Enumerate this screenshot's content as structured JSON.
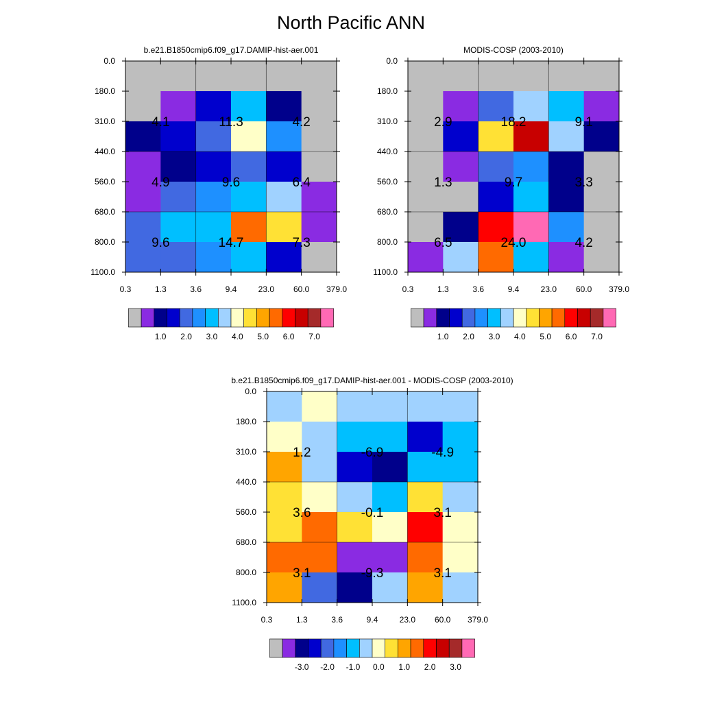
{
  "title": "North Pacific ANN",
  "chart_data": [
    {
      "type": "heatmap",
      "title": "b.e21.B1850cmip6.f09_g17.DAMIP-hist-aer.001",
      "x_ticks": [
        "0.3",
        "1.3",
        "3.6",
        "9.4",
        "23.0",
        "60.0",
        "379.0"
      ],
      "y_ticks": [
        "0.0",
        "180.0",
        "310.0",
        "440.0",
        "560.0",
        "680.0",
        "800.0",
        "1100.0"
      ],
      "cell_colors": [
        [
          "#bebebe",
          "#bebebe",
          "#bebebe",
          "#bebebe",
          "#bebebe",
          "#bebebe"
        ],
        [
          "#bebebe",
          "#8a2be2",
          "#0000cd",
          "#00bfff",
          "#00008b",
          "#bebebe"
        ],
        [
          "#00008b",
          "#0000cd",
          "#4169e1",
          "#ffffc8",
          "#1e90ff",
          "#bebebe"
        ],
        [
          "#8a2be2",
          "#00008b",
          "#0000cd",
          "#4169e1",
          "#0000cd",
          "#bebebe"
        ],
        [
          "#8a2be2",
          "#4169e1",
          "#1e90ff",
          "#00bfff",
          "#a0d2ff",
          "#8a2be2"
        ],
        [
          "#4169e1",
          "#00bfff",
          "#00bfff",
          "#ff6a00",
          "#ffe135",
          "#8a2be2"
        ],
        [
          "#4169e1",
          "#4169e1",
          "#1e90ff",
          "#00bfff",
          "#0000cd",
          "#bebebe"
        ]
      ],
      "annotations": [
        {
          "row": 1,
          "col": 0,
          "text": "4.1"
        },
        {
          "row": 1,
          "col": 1,
          "text": "11.3"
        },
        {
          "row": 1,
          "col": 2,
          "text": "4.2"
        },
        {
          "row": 2,
          "col": 0,
          "text": "4.9"
        },
        {
          "row": 2,
          "col": 1,
          "text": "9.6"
        },
        {
          "row": 2,
          "col": 2,
          "text": "6.4"
        },
        {
          "row": 3,
          "col": 0,
          "text": "9.6"
        },
        {
          "row": 3,
          "col": 1,
          "text": "14.7"
        },
        {
          "row": 3,
          "col": 2,
          "text": "7.3"
        }
      ],
      "colorbar": {
        "colors": [
          "#bebebe",
          "#8a2be2",
          "#00008b",
          "#0000cd",
          "#4169e1",
          "#1e90ff",
          "#00bfff",
          "#a0d2ff",
          "#ffffc8",
          "#ffe135",
          "#ffa500",
          "#ff6a00",
          "#ff0000",
          "#c80000",
          "#a52a2a",
          "#ff69b4"
        ],
        "labels": [
          "1.0",
          "2.0",
          "3.0",
          "4.0",
          "5.0",
          "6.0",
          "7.0"
        ],
        "label_box_index": [
          1,
          3,
          5,
          7,
          9,
          11,
          13
        ]
      }
    },
    {
      "type": "heatmap",
      "title": "MODIS-COSP (2003-2010)",
      "x_ticks": [
        "0.3",
        "1.3",
        "3.6",
        "9.4",
        "23.0",
        "60.0",
        "379.0"
      ],
      "y_ticks": [
        "0.0",
        "180.0",
        "310.0",
        "440.0",
        "560.0",
        "680.0",
        "800.0",
        "1100.0"
      ],
      "cell_colors": [
        [
          "#bebebe",
          "#bebebe",
          "#bebebe",
          "#bebebe",
          "#bebebe",
          "#bebebe"
        ],
        [
          "#bebebe",
          "#8a2be2",
          "#4169e1",
          "#a0d2ff",
          "#00bfff",
          "#8a2be2"
        ],
        [
          "#bebebe",
          "#0000cd",
          "#ffe135",
          "#c80000",
          "#a0d2ff",
          "#00008b"
        ],
        [
          "#bebebe",
          "#8a2be2",
          "#4169e1",
          "#1e90ff",
          "#00008b",
          "#bebebe"
        ],
        [
          "#bebebe",
          "#bebebe",
          "#0000cd",
          "#00bfff",
          "#00008b",
          "#bebebe"
        ],
        [
          "#bebebe",
          "#00008b",
          "#ff0000",
          "#ff69b4",
          "#1e90ff",
          "#bebebe"
        ],
        [
          "#8a2be2",
          "#a0d2ff",
          "#ff6a00",
          "#00bfff",
          "#8a2be2",
          "#bebebe"
        ]
      ],
      "annotations": [
        {
          "row": 1,
          "col": 0,
          "text": "2.9"
        },
        {
          "row": 1,
          "col": 1,
          "text": "18.2"
        },
        {
          "row": 1,
          "col": 2,
          "text": "9.1"
        },
        {
          "row": 2,
          "col": 0,
          "text": "1.3"
        },
        {
          "row": 2,
          "col": 1,
          "text": "9.7"
        },
        {
          "row": 2,
          "col": 2,
          "text": "3.3"
        },
        {
          "row": 3,
          "col": 0,
          "text": "6.5"
        },
        {
          "row": 3,
          "col": 1,
          "text": "24.0"
        },
        {
          "row": 3,
          "col": 2,
          "text": "4.2"
        }
      ],
      "colorbar": {
        "colors": [
          "#bebebe",
          "#8a2be2",
          "#00008b",
          "#0000cd",
          "#4169e1",
          "#1e90ff",
          "#00bfff",
          "#a0d2ff",
          "#ffffc8",
          "#ffe135",
          "#ffa500",
          "#ff6a00",
          "#ff0000",
          "#c80000",
          "#a52a2a",
          "#ff69b4"
        ],
        "labels": [
          "1.0",
          "2.0",
          "3.0",
          "4.0",
          "5.0",
          "6.0",
          "7.0"
        ],
        "label_box_index": [
          1,
          3,
          5,
          7,
          9,
          11,
          13
        ]
      }
    },
    {
      "type": "heatmap",
      "title": "b.e21.B1850cmip6.f09_g17.DAMIP-hist-aer.001 - MODIS-COSP (2003-2010)",
      "x_ticks": [
        "0.3",
        "1.3",
        "3.6",
        "9.4",
        "23.0",
        "60.0",
        "379.0"
      ],
      "y_ticks": [
        "0.0",
        "180.0",
        "310.0",
        "440.0",
        "560.0",
        "680.0",
        "800.0",
        "1100.0"
      ],
      "cell_colors": [
        [
          "#a0d2ff",
          "#ffffc8",
          "#a0d2ff",
          "#a0d2ff",
          "#a0d2ff",
          "#a0d2ff"
        ],
        [
          "#ffffc8",
          "#a0d2ff",
          "#00bfff",
          "#00bfff",
          "#0000cd",
          "#00bfff"
        ],
        [
          "#ffa500",
          "#a0d2ff",
          "#0000cd",
          "#00008b",
          "#00bfff",
          "#00bfff"
        ],
        [
          "#ffe135",
          "#ffffc8",
          "#a0d2ff",
          "#00bfff",
          "#ffe135",
          "#a0d2ff"
        ],
        [
          "#ffe135",
          "#ff6a00",
          "#ffe135",
          "#ffffc8",
          "#ff0000",
          "#ffffc8"
        ],
        [
          "#ff6a00",
          "#ff6a00",
          "#8a2be2",
          "#8a2be2",
          "#ff6a00",
          "#ffffc8"
        ],
        [
          "#ffa500",
          "#4169e1",
          "#00008b",
          "#a0d2ff",
          "#ffa500",
          "#a0d2ff"
        ]
      ],
      "annotations": [
        {
          "row": 1,
          "col": 0,
          "text": "1.2"
        },
        {
          "row": 1,
          "col": 1,
          "text": "-6.9"
        },
        {
          "row": 1,
          "col": 2,
          "text": "-4.9"
        },
        {
          "row": 2,
          "col": 0,
          "text": "3.6"
        },
        {
          "row": 2,
          "col": 1,
          "text": "-0.1"
        },
        {
          "row": 2,
          "col": 2,
          "text": "3.1"
        },
        {
          "row": 3,
          "col": 0,
          "text": "3.1"
        },
        {
          "row": 3,
          "col": 1,
          "text": "-9.3"
        },
        {
          "row": 3,
          "col": 2,
          "text": "3.1"
        }
      ],
      "colorbar": {
        "colors": [
          "#bebebe",
          "#8a2be2",
          "#00008b",
          "#0000cd",
          "#4169e1",
          "#1e90ff",
          "#00bfff",
          "#a0d2ff",
          "#ffffc8",
          "#ffe135",
          "#ffa500",
          "#ff6a00",
          "#ff0000",
          "#c80000",
          "#a52a2a",
          "#ff69b4"
        ],
        "labels": [
          "-3.0",
          "-2.0",
          "-1.0",
          "0.0",
          "1.0",
          "2.0",
          "3.0"
        ],
        "label_box_index": [
          1,
          3,
          5,
          7,
          9,
          11,
          13
        ]
      }
    }
  ]
}
